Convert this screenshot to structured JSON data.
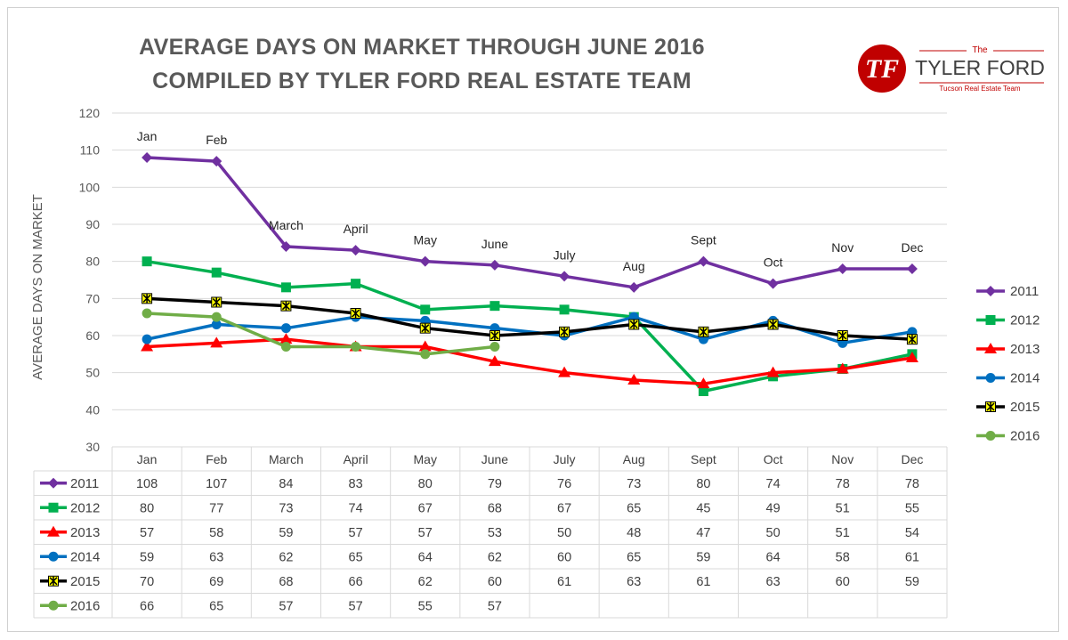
{
  "title_line1": "AVERAGE DAYS ON MARKET THROUGH JUNE 2016",
  "title_line2": "COMPILED BY TYLER FORD REAL ESTATE TEAM",
  "logo": {
    "mark": "TF",
    "the": "The",
    "name": "TYLER FORD",
    "tagline": "Tucson Real Estate Team"
  },
  "colors": {
    "2011": "#7030a0",
    "2012": "#00b050",
    "2013": "#ff0000",
    "2014": "#0070c0",
    "2015": "#000000",
    "2016": "#70ad47",
    "marker_2015_fill": "#ffff00",
    "logo_red": "#c00000"
  },
  "chart_data": {
    "type": "line",
    "ylabel": "AVERAGE DAYS ON MARKET",
    "ylim": [
      30,
      120
    ],
    "yticks": [
      30,
      40,
      50,
      60,
      70,
      80,
      90,
      100,
      110,
      120
    ],
    "grid": true,
    "legend_position": "right",
    "data_table": true,
    "categories": [
      "Jan",
      "Feb",
      "March",
      "April",
      "May",
      "June",
      "July",
      "Aug",
      "Sept",
      "Oct",
      "Nov",
      "Dec"
    ],
    "point_labels": [
      "Jan",
      "Feb",
      "March",
      "April",
      "May",
      "June",
      "July",
      "Aug",
      "Sept",
      "Oct",
      "Nov",
      "Dec"
    ],
    "point_labels_series": "2011",
    "series": [
      {
        "name": "2011",
        "marker": "diamond",
        "values": [
          108,
          107,
          84,
          83,
          80,
          79,
          76,
          73,
          80,
          74,
          78,
          78
        ]
      },
      {
        "name": "2012",
        "marker": "square",
        "values": [
          80,
          77,
          73,
          74,
          67,
          68,
          67,
          65,
          45,
          49,
          51,
          55
        ]
      },
      {
        "name": "2013",
        "marker": "triangle",
        "values": [
          57,
          58,
          59,
          57,
          57,
          53,
          50,
          48,
          47,
          50,
          51,
          54
        ]
      },
      {
        "name": "2014",
        "marker": "circle",
        "values": [
          59,
          63,
          62,
          65,
          64,
          62,
          60,
          65,
          59,
          64,
          58,
          61
        ]
      },
      {
        "name": "2015",
        "marker": "star",
        "values": [
          70,
          69,
          68,
          66,
          62,
          60,
          61,
          63,
          61,
          63,
          60,
          59
        ]
      },
      {
        "name": "2016",
        "marker": "circle",
        "values": [
          66,
          65,
          57,
          57,
          55,
          57,
          null,
          null,
          null,
          null,
          null,
          null
        ]
      }
    ]
  }
}
